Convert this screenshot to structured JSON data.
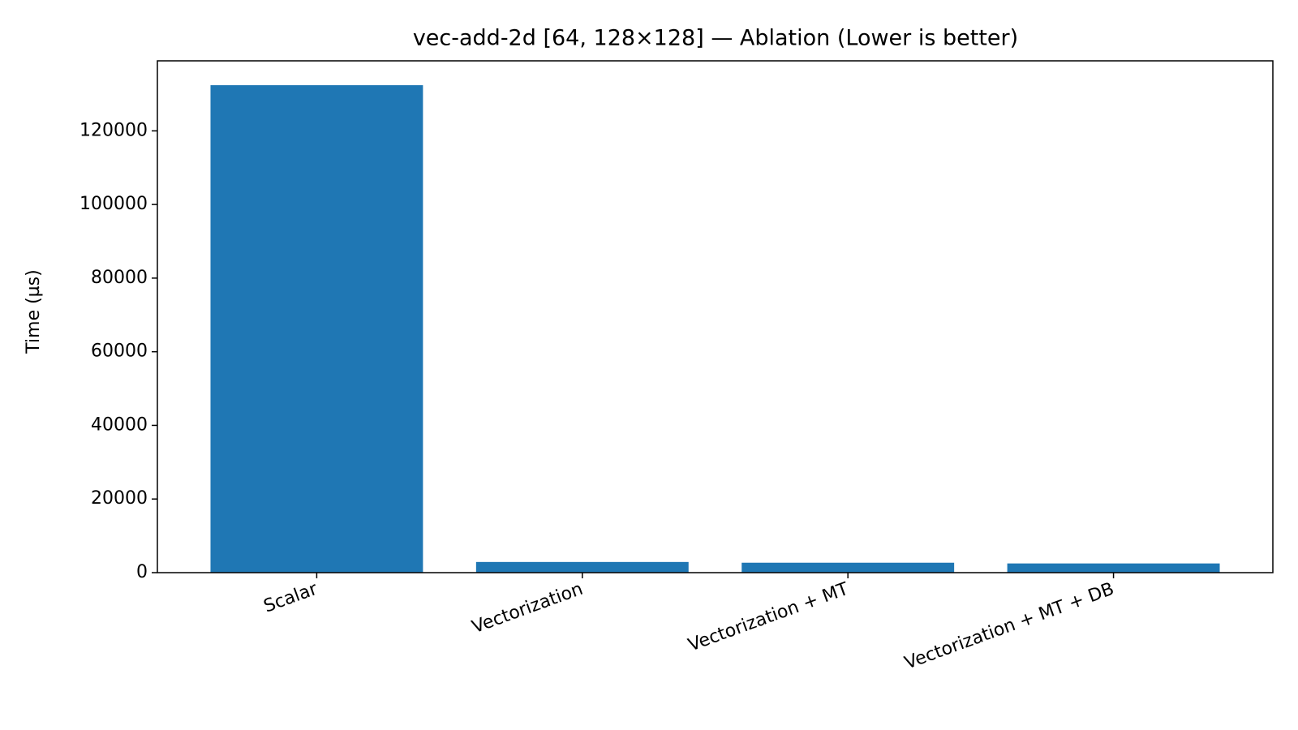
{
  "chart_data": {
    "type": "bar",
    "title": "vec-add-2d [64, 128×128] — Ablation (Lower is better)",
    "y_label": "Time (µs)",
    "categories": [
      "Scalar",
      "Vectorization",
      "Vectorization + MT",
      "Vectorization + MT + DB"
    ],
    "values": [
      132400,
      2900,
      2700,
      2500
    ],
    "color": "#1f77b4",
    "ylim": [
      0,
      139020
    ],
    "yticks": [
      0,
      20000,
      40000,
      60000,
      80000,
      100000,
      120000
    ],
    "grid": false
  }
}
